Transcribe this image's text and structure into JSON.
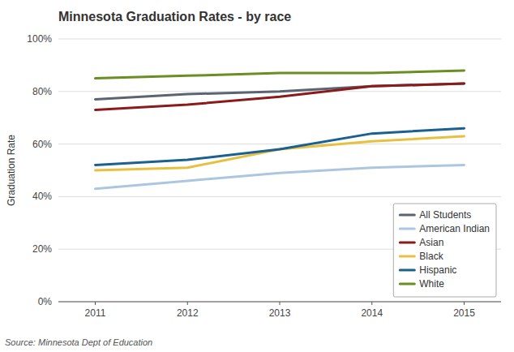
{
  "chart_data": {
    "type": "line",
    "title": "Minnesota Graduation Rates - by race",
    "y_label": "Graduation Rate",
    "annotations": [
      "Source:  Minnesota Dept of Education"
    ],
    "x": [
      2011,
      2012,
      2013,
      2014,
      2015
    ],
    "series": [
      {
        "name": "All Students",
        "color": "#5a6472",
        "values": [
          0.77,
          0.79,
          0.8,
          0.82,
          0.83
        ]
      },
      {
        "name": "American Indian",
        "color": "#adc6e0",
        "values": [
          0.43,
          0.46,
          0.49,
          0.51,
          0.52
        ]
      },
      {
        "name": "Asian",
        "color": "#8b1a1a",
        "values": [
          0.73,
          0.75,
          0.78,
          0.82,
          0.83
        ]
      },
      {
        "name": "Black",
        "color": "#e8c040",
        "values": [
          0.5,
          0.51,
          0.58,
          0.61,
          0.63
        ]
      },
      {
        "name": "Hispanic",
        "color": "#1a6090",
        "values": [
          0.52,
          0.54,
          0.58,
          0.64,
          0.66
        ]
      },
      {
        "name": "White",
        "color": "#6b8e23",
        "values": [
          0.85,
          0.86,
          0.87,
          0.87,
          0.88
        ]
      }
    ],
    "xlim": [
      2010.6,
      2015.4
    ],
    "xticks": [
      2011,
      2012,
      2013,
      2014,
      2015
    ],
    "ylim": [
      0,
      1.0
    ],
    "yticks": [
      {
        "value": 0,
        "label": "0%"
      },
      {
        "value": 0.2,
        "label": "20%"
      },
      {
        "value": 0.4,
        "label": "40%"
      },
      {
        "value": 0.6,
        "label": "60%"
      },
      {
        "value": 0.8,
        "label": "80%"
      },
      {
        "value": 1.0,
        "label": "100%"
      }
    ],
    "grid": true,
    "legend": "lower right"
  }
}
